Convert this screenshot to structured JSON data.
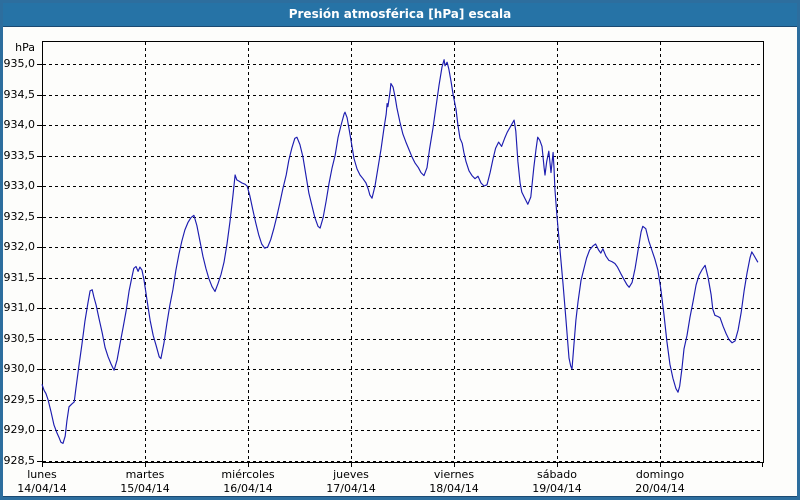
{
  "window": {
    "title": "Presión atmosférica [hPa] escala"
  },
  "colors": {
    "frame": "#2d6e9e",
    "frame_dark": "#1b4a72",
    "title_bg": "#2673a6",
    "title_text": "#ffffff",
    "line": "#1c1cb0",
    "grid": "#000000",
    "background": "#fdfdfb"
  },
  "chart_data": {
    "type": "line",
    "title": "Presión atmosférica [hPa] escala",
    "ylabel": "hPa",
    "grid": "dashed",
    "legend": "none",
    "y_axis": {
      "unit_label": "hPa",
      "min": 928.5,
      "max": 935.0,
      "tick_step": 0.5,
      "tick_values": [
        935.0,
        934.5,
        934.0,
        933.5,
        933.0,
        932.5,
        932.0,
        931.5,
        931.0,
        930.5,
        930.0,
        929.5,
        929.0,
        928.5
      ],
      "tick_labels": [
        "935,0",
        "934,5",
        "934,0",
        "933,5",
        "933,0",
        "932,5",
        "932,0",
        "931,5",
        "931,0",
        "930,5",
        "930,0",
        "929,5",
        "929,0",
        "928,5"
      ]
    },
    "x_axis": {
      "hours_total": 168,
      "day_gridlines_hours": [
        24,
        48,
        72,
        96,
        120,
        144
      ],
      "days": [
        {
          "name": "lunes",
          "date": "14/04/14"
        },
        {
          "name": "martes",
          "date": "15/04/14"
        },
        {
          "name": "miércoles",
          "date": "16/04/14"
        },
        {
          "name": "jueves",
          "date": "17/04/14"
        },
        {
          "name": "viernes",
          "date": "18/04/14"
        },
        {
          "name": "sábado",
          "date": "19/04/14"
        },
        {
          "name": "domingo",
          "date": "20/04/14"
        }
      ]
    },
    "series": [
      {
        "name": "Presión atmosférica",
        "unit": "hPa",
        "points": [
          [
            0,
            929.75
          ],
          [
            0.5,
            929.65
          ],
          [
            0.9,
            929.6
          ],
          [
            1.4,
            929.5
          ],
          [
            2.1,
            929.3
          ],
          [
            2.8,
            929.08
          ],
          [
            3.5,
            928.95
          ],
          [
            4,
            928.87
          ],
          [
            4.4,
            928.8
          ],
          [
            4.9,
            928.78
          ],
          [
            5.4,
            928.9
          ],
          [
            5.8,
            929.15
          ],
          [
            6.3,
            929.38
          ],
          [
            7,
            929.43
          ],
          [
            7.5,
            929.46
          ],
          [
            7.9,
            929.68
          ],
          [
            8.6,
            930.05
          ],
          [
            9.3,
            930.4
          ],
          [
            10,
            930.78
          ],
          [
            10.7,
            931.08
          ],
          [
            11.2,
            931.28
          ],
          [
            11.7,
            931.3
          ],
          [
            12.1,
            931.18
          ],
          [
            12.6,
            931.05
          ],
          [
            13.3,
            930.82
          ],
          [
            14,
            930.6
          ],
          [
            14.7,
            930.35
          ],
          [
            15.4,
            930.2
          ],
          [
            16.1,
            930.08
          ],
          [
            16.8,
            929.98
          ],
          [
            17.5,
            930.15
          ],
          [
            18.2,
            930.42
          ],
          [
            18.9,
            930.68
          ],
          [
            19.6,
            930.95
          ],
          [
            20.3,
            931.28
          ],
          [
            21,
            931.52
          ],
          [
            21.4,
            931.65
          ],
          [
            21.9,
            931.68
          ],
          [
            22.4,
            931.6
          ],
          [
            22.8,
            931.67
          ],
          [
            23.3,
            931.62
          ],
          [
            23.8,
            931.45
          ],
          [
            24.5,
            931.12
          ],
          [
            25.2,
            930.8
          ],
          [
            25.9,
            930.55
          ],
          [
            26.6,
            930.38
          ],
          [
            27.3,
            930.2
          ],
          [
            27.7,
            930.17
          ],
          [
            28.4,
            930.42
          ],
          [
            29.1,
            930.75
          ],
          [
            29.8,
            931.05
          ],
          [
            30.5,
            931.3
          ],
          [
            31.2,
            931.62
          ],
          [
            31.9,
            931.88
          ],
          [
            32.6,
            932.1
          ],
          [
            33.3,
            932.28
          ],
          [
            34,
            932.4
          ],
          [
            34.7,
            932.48
          ],
          [
            35.4,
            932.52
          ],
          [
            36.1,
            932.35
          ],
          [
            36.8,
            932.1
          ],
          [
            37.5,
            931.85
          ],
          [
            38.2,
            931.65
          ],
          [
            38.9,
            931.48
          ],
          [
            39.6,
            931.35
          ],
          [
            40.3,
            931.27
          ],
          [
            41,
            931.4
          ],
          [
            41.7,
            931.55
          ],
          [
            42.4,
            931.75
          ],
          [
            43.1,
            932.05
          ],
          [
            43.8,
            932.42
          ],
          [
            44.5,
            932.85
          ],
          [
            45,
            933.18
          ],
          [
            45.4,
            933.1
          ],
          [
            45.9,
            933.08
          ],
          [
            46.6,
            933.05
          ],
          [
            47.3,
            933.03
          ],
          [
            47.8,
            933
          ],
          [
            48.4,
            932.85
          ],
          [
            49.1,
            932.62
          ],
          [
            49.8,
            932.4
          ],
          [
            50.5,
            932.2
          ],
          [
            51.2,
            932.05
          ],
          [
            51.9,
            931.98
          ],
          [
            52.6,
            932
          ],
          [
            53.3,
            932.12
          ],
          [
            54,
            932.3
          ],
          [
            54.7,
            932.5
          ],
          [
            55.4,
            932.72
          ],
          [
            56.1,
            932.95
          ],
          [
            56.9,
            933.18
          ],
          [
            57.5,
            933.42
          ],
          [
            58.2,
            933.62
          ],
          [
            58.9,
            933.78
          ],
          [
            59.4,
            933.8
          ],
          [
            60.1,
            933.68
          ],
          [
            60.8,
            933.48
          ],
          [
            61.5,
            933.18
          ],
          [
            62.2,
            932.88
          ],
          [
            62.9,
            932.68
          ],
          [
            63.6,
            932.48
          ],
          [
            64.3,
            932.34
          ],
          [
            64.8,
            932.31
          ],
          [
            65.5,
            932.48
          ],
          [
            66.2,
            932.75
          ],
          [
            66.9,
            933.05
          ],
          [
            67.6,
            933.3
          ],
          [
            68.3,
            933.5
          ],
          [
            69,
            933.8
          ],
          [
            69.7,
            934
          ],
          [
            70.4,
            934.18
          ],
          [
            70.6,
            934.21
          ],
          [
            71.1,
            934.12
          ],
          [
            71.5,
            933.95
          ],
          [
            72,
            933.75
          ],
          [
            72.7,
            933.45
          ],
          [
            73.4,
            933.28
          ],
          [
            74.1,
            933.18
          ],
          [
            74.8,
            933.12
          ],
          [
            75.5,
            933.05
          ],
          [
            76,
            932.95
          ],
          [
            76.4,
            932.85
          ],
          [
            76.9,
            932.8
          ],
          [
            77.6,
            933
          ],
          [
            78.3,
            933.3
          ],
          [
            79,
            933.6
          ],
          [
            79.7,
            933.95
          ],
          [
            80.2,
            934.18
          ],
          [
            80.4,
            934.35
          ],
          [
            80.6,
            934.3
          ],
          [
            81.1,
            934.55
          ],
          [
            81.3,
            934.68
          ],
          [
            81.8,
            934.62
          ],
          [
            82.3,
            934.45
          ],
          [
            82.7,
            934.28
          ],
          [
            83.4,
            934.05
          ],
          [
            84.1,
            933.85
          ],
          [
            84.8,
            933.72
          ],
          [
            85.5,
            933.6
          ],
          [
            86.2,
            933.48
          ],
          [
            86.9,
            933.38
          ],
          [
            87.7,
            933.3
          ],
          [
            88.3,
            933.22
          ],
          [
            89,
            933.17
          ],
          [
            89.7,
            933.3
          ],
          [
            90.3,
            933.6
          ],
          [
            91.1,
            933.95
          ],
          [
            91.8,
            934.3
          ],
          [
            92.5,
            934.65
          ],
          [
            93.2,
            934.95
          ],
          [
            93.7,
            935.07
          ],
          [
            93.9,
            934.97
          ],
          [
            94.4,
            935.03
          ],
          [
            94.8,
            934.92
          ],
          [
            95.3,
            934.72
          ],
          [
            95.8,
            934.5
          ],
          [
            96.5,
            934.25
          ],
          [
            96.9,
            934
          ],
          [
            97.4,
            933.78
          ],
          [
            97.9,
            933.7
          ],
          [
            98.3,
            933.55
          ],
          [
            98.8,
            933.4
          ],
          [
            99.5,
            933.25
          ],
          [
            100.2,
            933.17
          ],
          [
            100.9,
            933.12
          ],
          [
            101.6,
            933.16
          ],
          [
            102.3,
            933.05
          ],
          [
            103,
            933
          ],
          [
            103.7,
            933.02
          ],
          [
            104.4,
            933.22
          ],
          [
            105.1,
            933.45
          ],
          [
            105.7,
            933.62
          ],
          [
            106.4,
            933.72
          ],
          [
            107.1,
            933.65
          ],
          [
            107.8,
            933.78
          ],
          [
            108.4,
            933.88
          ],
          [
            109.2,
            933.98
          ],
          [
            110,
            934.08
          ],
          [
            110.4,
            933.9
          ],
          [
            110.9,
            933.4
          ],
          [
            111.4,
            933.05
          ],
          [
            111.8,
            932.9
          ],
          [
            112.5,
            932.8
          ],
          [
            113.2,
            932.7
          ],
          [
            113.9,
            932.82
          ],
          [
            114.6,
            933.3
          ],
          [
            115.1,
            933.6
          ],
          [
            115.5,
            933.8
          ],
          [
            116,
            933.75
          ],
          [
            116.5,
            933.65
          ],
          [
            117,
            933.3
          ],
          [
            117.2,
            933.18
          ],
          [
            117.6,
            933.4
          ],
          [
            118.1,
            933.57
          ],
          [
            118.6,
            933.22
          ],
          [
            119.1,
            933.55
          ],
          [
            119.3,
            933.3
          ],
          [
            119.5,
            932.95
          ],
          [
            120,
            932.5
          ],
          [
            120.7,
            931.95
          ],
          [
            121.4,
            931.4
          ],
          [
            122.1,
            930.8
          ],
          [
            122.8,
            930.18
          ],
          [
            123.2,
            930.05
          ],
          [
            123.5,
            930
          ],
          [
            123.9,
            930.35
          ],
          [
            124.4,
            930.8
          ],
          [
            124.9,
            931.1
          ],
          [
            125.6,
            931.45
          ],
          [
            126.3,
            931.65
          ],
          [
            126.9,
            931.82
          ],
          [
            127.6,
            931.95
          ],
          [
            128.4,
            932.02
          ],
          [
            129,
            932.05
          ],
          [
            129.7,
            931.95
          ],
          [
            130.2,
            931.9
          ],
          [
            130.7,
            931.97
          ],
          [
            131.4,
            931.85
          ],
          [
            132.1,
            931.78
          ],
          [
            132.8,
            931.76
          ],
          [
            133.5,
            931.73
          ],
          [
            134.1,
            931.67
          ],
          [
            134.9,
            931.56
          ],
          [
            135.6,
            931.47
          ],
          [
            136.3,
            931.38
          ],
          [
            136.8,
            931.34
          ],
          [
            137.5,
            931.42
          ],
          [
            138.2,
            931.65
          ],
          [
            138.9,
            931.95
          ],
          [
            139.6,
            932.25
          ],
          [
            140,
            932.34
          ],
          [
            140.7,
            932.3
          ],
          [
            141.4,
            932.1
          ],
          [
            142.1,
            931.95
          ],
          [
            142.8,
            931.8
          ],
          [
            143.5,
            931.62
          ],
          [
            144.2,
            931.3
          ],
          [
            144.9,
            930.9
          ],
          [
            145.6,
            930.45
          ],
          [
            146.3,
            930.08
          ],
          [
            147,
            929.85
          ],
          [
            147.7,
            929.68
          ],
          [
            148.2,
            929.62
          ],
          [
            148.6,
            929.72
          ],
          [
            149.1,
            930
          ],
          [
            149.6,
            930.33
          ],
          [
            150.3,
            930.55
          ],
          [
            151,
            930.85
          ],
          [
            151.7,
            931.1
          ],
          [
            152.4,
            931.38
          ],
          [
            153.1,
            931.54
          ],
          [
            153.8,
            931.63
          ],
          [
            154.5,
            931.7
          ],
          [
            155.2,
            931.5
          ],
          [
            155.9,
            931.22
          ],
          [
            156.3,
            930.98
          ],
          [
            156.8,
            930.88
          ],
          [
            157.5,
            930.86
          ],
          [
            158,
            930.84
          ],
          [
            158.7,
            930.7
          ],
          [
            159.4,
            930.58
          ],
          [
            160.1,
            930.48
          ],
          [
            160.8,
            930.43
          ],
          [
            161.5,
            930.46
          ],
          [
            162.2,
            930.64
          ],
          [
            162.9,
            930.92
          ],
          [
            163.6,
            931.28
          ],
          [
            164.3,
            931.58
          ],
          [
            165,
            931.83
          ],
          [
            165.4,
            931.92
          ],
          [
            165.9,
            931.86
          ],
          [
            166.4,
            931.8
          ],
          [
            166.8,
            931.75
          ]
        ]
      }
    ]
  }
}
